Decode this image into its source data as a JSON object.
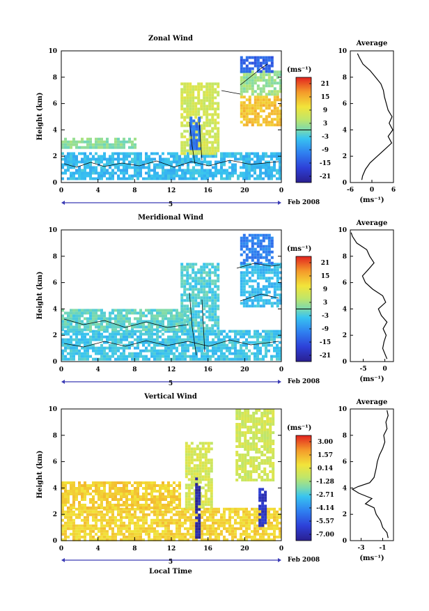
{
  "panels": [
    {
      "title": "Zonal Wind",
      "ylabel": "Height (km)",
      "yticks": [
        "0",
        "2",
        "4",
        "6",
        "8",
        "10"
      ],
      "xticks": [
        "0",
        "4",
        "8",
        "12",
        "16",
        "20",
        "0"
      ],
      "day_label": "5",
      "month_label": "Feb 2008",
      "colorbar": {
        "unit": "(ms⁻¹)",
        "ticks": [
          "21",
          "15",
          "9",
          "3",
          "-3",
          "-9",
          "-15",
          "-21"
        ],
        "zero_line_at": 3
      },
      "profile": {
        "title": "Average",
        "xticks": [
          "-6",
          "0",
          "6"
        ],
        "xlabel": "(ms⁻¹)",
        "yticks": [
          "0",
          "2",
          "4",
          "6",
          "8",
          "10"
        ],
        "xlim": [
          -6,
          6
        ]
      }
    },
    {
      "title": "Meridional Wind",
      "ylabel": "Height (km)",
      "yticks": [
        "0",
        "2",
        "4",
        "6",
        "8",
        "10"
      ],
      "xticks": [
        "0",
        "4",
        "8",
        "12",
        "16",
        "20",
        "0"
      ],
      "day_label": "5",
      "month_label": "Feb 2008",
      "colorbar": {
        "unit": "(ms⁻¹)",
        "ticks": [
          "21",
          "15",
          "9",
          "3",
          "-3",
          "-9",
          "-15",
          "-21"
        ],
        "zero_line_at": 3
      },
      "profile": {
        "title": "Average",
        "xticks": [
          "-5",
          "0"
        ],
        "xlabel": "(ms⁻¹)",
        "yticks": [
          "0",
          "2",
          "4",
          "6",
          "8",
          "10"
        ],
        "xlim": [
          -8,
          2
        ]
      }
    },
    {
      "title": "Vertical Wind",
      "ylabel": "Height (km)",
      "yticks": [
        "0",
        "2",
        "4",
        "6",
        "8",
        "10"
      ],
      "xticks": [
        "0",
        "4",
        "8",
        "12",
        "16",
        "20",
        "0"
      ],
      "day_label": "5",
      "month_label": "Feb 2008",
      "xlabel": "Local Time",
      "colorbar": {
        "unit": "(ms⁻¹)",
        "ticks": [
          "3.00",
          "1.57",
          "0.14",
          "-1.28",
          "-2.71",
          "-4.14",
          "-5.57",
          "-7.00"
        ]
      },
      "profile": {
        "title": "Average",
        "xticks": [
          "-3",
          "-1"
        ],
        "xlabel": "(ms⁻¹)",
        "yticks": [
          "0",
          "2",
          "4",
          "6",
          "8",
          "10"
        ],
        "xlim": [
          -4,
          0
        ]
      }
    }
  ],
  "chart_data": [
    {
      "type": "heatmap",
      "title": "Zonal Wind",
      "xlabel": "",
      "ylabel": "Height (km)",
      "xlim_hours": [
        0,
        24
      ],
      "ylim": [
        0,
        10
      ],
      "colorbar_range": [
        -21,
        21
      ],
      "regions": [
        {
          "t": [
            0,
            24
          ],
          "z": [
            0.2,
            2.3
          ],
          "value": -4
        },
        {
          "t": [
            0,
            8
          ],
          "z": [
            2.6,
            3.4
          ],
          "value": 1
        },
        {
          "t": [
            13,
            17
          ],
          "z": [
            2.3,
            7.6
          ],
          "value": 6
        },
        {
          "t": [
            14,
            15
          ],
          "z": [
            2.5,
            5.0
          ],
          "value": -10
        },
        {
          "t": [
            19.5,
            24
          ],
          "z": [
            4.4,
            6.6
          ],
          "value": 12
        },
        {
          "t": [
            19.5,
            24
          ],
          "z": [
            6.6,
            8.5
          ],
          "value": 2
        },
        {
          "t": [
            19.5,
            23
          ],
          "z": [
            8.5,
            9.6
          ],
          "value": -12
        }
      ],
      "profile": {
        "title": "Average",
        "xlabel": "(ms⁻¹)",
        "ylabel": "Height (km)",
        "xlim": [
          -6,
          6
        ],
        "ylim": [
          0,
          10
        ],
        "z": [
          0.2,
          0.5,
          1.0,
          1.5,
          2.0,
          2.5,
          3.0,
          3.5,
          4.0,
          4.5,
          5.0,
          5.5,
          6.0,
          6.5,
          7.0,
          7.5,
          8.0,
          8.5,
          9.0,
          9.5,
          9.8
        ],
        "u": [
          -2.8,
          -2.6,
          -1.8,
          -0.5,
          1.5,
          3.5,
          5.5,
          4.5,
          5.8,
          4.8,
          5.6,
          4.5,
          4.0,
          3.5,
          3.2,
          2.5,
          1.0,
          -0.5,
          -2.5,
          -3.5,
          -4.0
        ]
      }
    },
    {
      "type": "heatmap",
      "title": "Meridional Wind",
      "xlabel": "",
      "ylabel": "Height (km)",
      "xlim_hours": [
        0,
        24
      ],
      "ylim": [
        0,
        10
      ],
      "colorbar_range": [
        -21,
        21
      ],
      "regions": [
        {
          "t": [
            0,
            24
          ],
          "z": [
            0.2,
            2.4
          ],
          "value": -3
        },
        {
          "t": [
            0,
            14
          ],
          "z": [
            2.4,
            4.0
          ],
          "value": -1
        },
        {
          "t": [
            13,
            17
          ],
          "z": [
            2.4,
            7.5
          ],
          "value": -2
        },
        {
          "t": [
            19.5,
            24
          ],
          "z": [
            4.3,
            7.5
          ],
          "value": -4
        },
        {
          "t": [
            19.5,
            23
          ],
          "z": [
            7.5,
            9.7
          ],
          "value": -9
        }
      ],
      "profile": {
        "title": "Average",
        "xlabel": "(ms⁻¹)",
        "ylabel": "Height (km)",
        "xlim": [
          -8,
          2
        ],
        "ylim": [
          0,
          10
        ],
        "z": [
          0.2,
          0.6,
          1.0,
          1.5,
          2.0,
          2.5,
          3.0,
          3.5,
          4.0,
          4.5,
          5.0,
          5.5,
          6.0,
          6.5,
          7.0,
          7.5,
          8.0,
          8.5,
          9.0,
          9.5,
          9.8
        ],
        "u": [
          0.5,
          0.0,
          -0.5,
          -0.2,
          0.3,
          -0.4,
          0.5,
          -0.8,
          -1.5,
          0.2,
          -0.5,
          -2.8,
          -4.5,
          -5.2,
          -3.8,
          -2.5,
          -3.5,
          -4.2,
          -6.5,
          -7.5,
          -7.8
        ]
      }
    },
    {
      "type": "heatmap",
      "title": "Vertical Wind",
      "xlabel": "Local Time",
      "ylabel": "Height (km)",
      "xlim_hours": [
        0,
        24
      ],
      "ylim": [
        0,
        10
      ],
      "colorbar_range": [
        -7,
        3
      ],
      "regions": [
        {
          "t": [
            0,
            24
          ],
          "z": [
            0.1,
            2.5
          ],
          "value": 0.5
        },
        {
          "t": [
            0,
            13
          ],
          "z": [
            2.5,
            4.5
          ],
          "value": 0.6
        },
        {
          "t": [
            13.5,
            16.5
          ],
          "z": [
            2.5,
            7.5
          ],
          "value": -0.5
        },
        {
          "t": [
            14.6,
            15.2
          ],
          "z": [
            0.3,
            4.8
          ],
          "value": -6.5
        },
        {
          "t": [
            19,
            23
          ],
          "z": [
            4.5,
            10
          ],
          "value": -0.6
        },
        {
          "t": [
            21.5,
            22.2
          ],
          "z": [
            1.2,
            4.0
          ],
          "value": -6
        }
      ],
      "profile": {
        "title": "Average",
        "xlabel": "(ms⁻¹)",
        "ylabel": "Height (km)",
        "xlim": [
          -4,
          0
        ],
        "ylim": [
          0,
          10
        ],
        "z": [
          0.2,
          0.6,
          1.0,
          1.5,
          2.0,
          2.5,
          2.8,
          3.2,
          3.6,
          3.9,
          4.1,
          4.4,
          4.8,
          5.5,
          6.0,
          6.5,
          7.0,
          7.5,
          8.0,
          8.5,
          9.0,
          9.5,
          9.9
        ],
        "u": [
          -0.5,
          -0.6,
          -1.0,
          -1.2,
          -1.6,
          -1.8,
          -2.6,
          -2.0,
          -3.2,
          -3.8,
          -3.3,
          -2.2,
          -1.8,
          -1.6,
          -1.5,
          -1.3,
          -1.0,
          -0.8,
          -0.9,
          -0.6,
          -0.7,
          -0.5,
          -0.6
        ]
      }
    }
  ]
}
